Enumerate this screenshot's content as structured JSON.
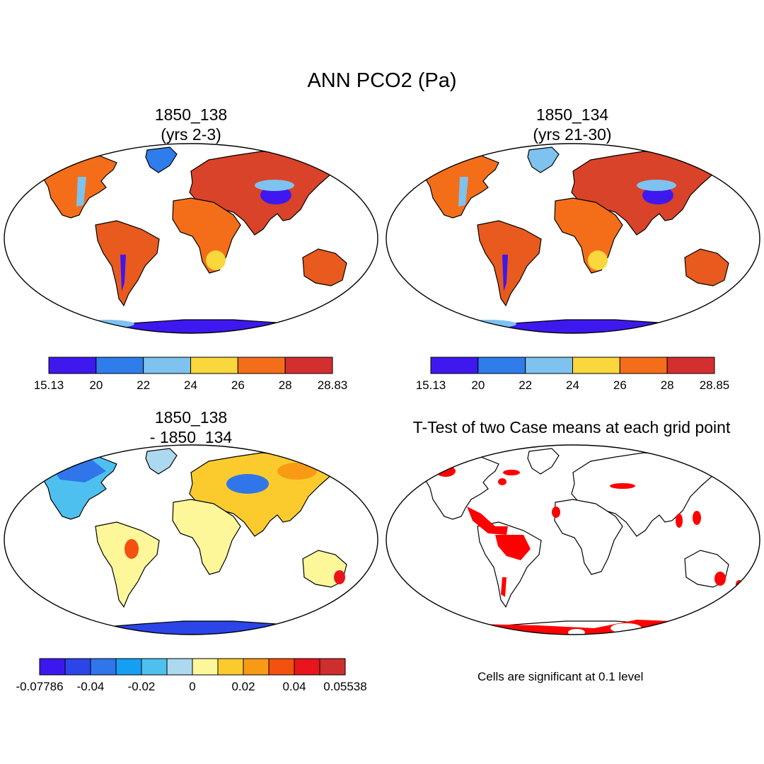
{
  "main_title": "ANN PCO2 (Pa)",
  "panels": [
    {
      "title1": "1850_138",
      "title2": "(yrs 2-3)"
    },
    {
      "title1": "1850_134",
      "title2": "(yrs 21-30)"
    },
    {
      "title1": "1850_138",
      "title2": "- 1850_134"
    },
    {
      "title1": "T-Test of two Case means at each grid point",
      "title2": ""
    }
  ],
  "colorbars": [
    {
      "colors": [
        "#3e18ee",
        "#2f7ceb",
        "#7ec2ef",
        "#fad73c",
        "#f46e1a",
        "#d32f2e"
      ],
      "labels": [
        "15.13",
        "20",
        "22",
        "24",
        "26",
        "28",
        "28.83"
      ]
    },
    {
      "colors": [
        "#3e18ee",
        "#2f7ceb",
        "#7ec2ef",
        "#fad73c",
        "#f46e1a",
        "#d32f2e"
      ],
      "labels": [
        "15.13",
        "20",
        "22",
        "24",
        "26",
        "28",
        "28.85"
      ]
    },
    {
      "colors": [
        "#3d18ee",
        "#2b45e8",
        "#3076ea",
        "#169ff2",
        "#4ec0f0",
        "#acd9f0",
        "#fdf79a",
        "#fbcb2e",
        "#f99a14",
        "#f4500f",
        "#e9141c",
        "#cf2e2f"
      ],
      "labels": [
        "-0.07786",
        "-0.04",
        "-0.02",
        "0",
        "0.02",
        "0.04",
        "0.05538"
      ]
    }
  ],
  "significance_note": "Cells are significant at 0.1 level",
  "colors": {
    "significant": "#ff0000",
    "antarctic_low": "#3e18ee"
  }
}
